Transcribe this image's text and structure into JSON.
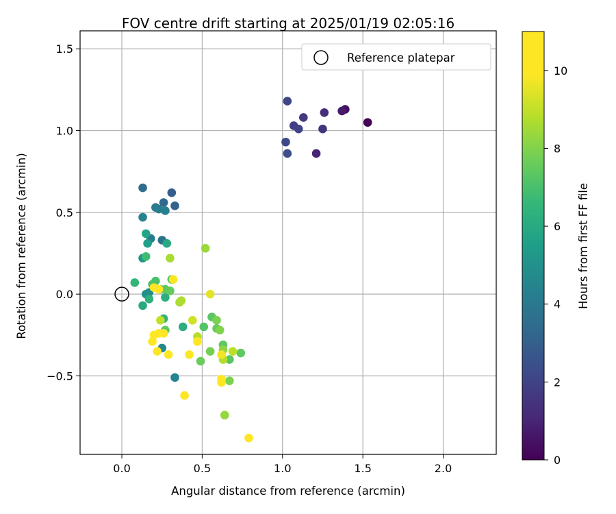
{
  "chart_data": {
    "type": "scatter",
    "title": "FOV centre drift starting at 2025/01/19 02:05:16",
    "xlabel": "Angular distance from reference (arcmin)",
    "ylabel": "Rotation from reference (arcmin)",
    "xlim": [
      -0.26,
      2.33
    ],
    "ylim": [
      -0.98,
      1.61
    ],
    "xticks": [
      0.0,
      0.5,
      1.0,
      1.5,
      2.0
    ],
    "xtick_labels": [
      "0.0",
      "0.5",
      "1.0",
      "1.5",
      "2.0"
    ],
    "yticks": [
      -0.5,
      0.0,
      0.5,
      1.0,
      1.5
    ],
    "ytick_labels": [
      "−0.5",
      "0.0",
      "0.5",
      "1.0",
      "1.5"
    ],
    "grid": true,
    "legend": {
      "placement": "top-right",
      "entries": [
        "Reference platepar"
      ]
    },
    "reference_point": {
      "x": 0.0,
      "y": 0.0,
      "label": "Reference platepar"
    },
    "colorbar": {
      "label": "Hours from first FF file",
      "colormap": "viridis",
      "range": [
        0,
        11
      ],
      "ticks": [
        0,
        2,
        4,
        6,
        8,
        10
      ],
      "tick_labels": [
        "0",
        "2",
        "4",
        "6",
        "8",
        "10"
      ]
    },
    "series": [
      {
        "points": [
          {
            "x": 1.53,
            "y": 1.05,
            "c": 0.1
          },
          {
            "x": 1.39,
            "y": 1.13,
            "c": 0.4
          },
          {
            "x": 1.37,
            "y": 1.12,
            "c": 0.7
          },
          {
            "x": 1.21,
            "y": 0.86,
            "c": 1.0
          },
          {
            "x": 1.26,
            "y": 1.11,
            "c": 1.3
          },
          {
            "x": 1.25,
            "y": 1.01,
            "c": 1.5
          },
          {
            "x": 1.13,
            "y": 1.08,
            "c": 1.7
          },
          {
            "x": 1.07,
            "y": 1.03,
            "c": 1.8
          },
          {
            "x": 1.1,
            "y": 1.01,
            "c": 2.0
          },
          {
            "x": 1.03,
            "y": 1.18,
            "c": 2.1
          },
          {
            "x": 1.02,
            "y": 0.93,
            "c": 2.2
          },
          {
            "x": 1.03,
            "y": 0.86,
            "c": 2.4
          },
          {
            "x": 0.31,
            "y": 0.62,
            "c": 2.9
          },
          {
            "x": 0.33,
            "y": 0.54,
            "c": 3.1
          },
          {
            "x": 0.26,
            "y": 0.56,
            "c": 3.3
          },
          {
            "x": 0.13,
            "y": 0.65,
            "c": 3.5
          },
          {
            "x": 0.25,
            "y": 0.33,
            "c": 3.8
          },
          {
            "x": 0.21,
            "y": 0.53,
            "c": 4.1
          },
          {
            "x": 0.23,
            "y": 0.52,
            "c": 4.2
          },
          {
            "x": 0.27,
            "y": 0.51,
            "c": 4.3
          },
          {
            "x": 0.13,
            "y": 0.47,
            "c": 4.4
          },
          {
            "x": 0.18,
            "y": 0.34,
            "c": 4.1
          },
          {
            "x": 0.33,
            "y": -0.51,
            "c": 4.4
          },
          {
            "x": 0.25,
            "y": -0.33,
            "c": 4.6
          },
          {
            "x": 0.17,
            "y": 0.01,
            "c": 4.8
          },
          {
            "x": 0.15,
            "y": 0.0,
            "c": 5.0
          },
          {
            "x": 0.13,
            "y": 0.22,
            "c": 5.2
          },
          {
            "x": 0.16,
            "y": 0.31,
            "c": 5.6
          },
          {
            "x": 0.15,
            "y": 0.37,
            "c": 5.8
          },
          {
            "x": 0.28,
            "y": 0.31,
            "c": 6.0
          },
          {
            "x": 0.13,
            "y": -0.07,
            "c": 6.0
          },
          {
            "x": 0.27,
            "y": -0.02,
            "c": 6.2
          },
          {
            "x": 0.17,
            "y": -0.03,
            "c": 6.3
          },
          {
            "x": 0.26,
            "y": -0.15,
            "c": 6.4
          },
          {
            "x": 0.38,
            "y": -0.2,
            "c": 6.2
          },
          {
            "x": 0.08,
            "y": 0.07,
            "c": 6.5
          },
          {
            "x": 0.15,
            "y": 0.23,
            "c": 6.8
          },
          {
            "x": 0.21,
            "y": 0.08,
            "c": 7.0
          },
          {
            "x": 0.19,
            "y": 0.06,
            "c": 7.1
          },
          {
            "x": 0.24,
            "y": 0.03,
            "c": 7.2
          },
          {
            "x": 0.27,
            "y": 0.03,
            "c": 7.4
          },
          {
            "x": 0.3,
            "y": 0.02,
            "c": 7.5
          },
          {
            "x": 0.31,
            "y": 0.09,
            "c": 7.3
          },
          {
            "x": 0.27,
            "y": -0.22,
            "c": 7.4
          },
          {
            "x": 0.51,
            "y": -0.2,
            "c": 7.2
          },
          {
            "x": 0.56,
            "y": -0.14,
            "c": 7.3
          },
          {
            "x": 0.59,
            "y": -0.21,
            "c": 7.5
          },
          {
            "x": 0.63,
            "y": -0.31,
            "c": 7.4
          },
          {
            "x": 0.67,
            "y": -0.4,
            "c": 7.3
          },
          {
            "x": 0.74,
            "y": -0.36,
            "c": 7.4
          },
          {
            "x": 0.49,
            "y": -0.41,
            "c": 7.6
          },
          {
            "x": 0.55,
            "y": -0.35,
            "c": 7.8
          },
          {
            "x": 0.59,
            "y": -0.16,
            "c": 7.9
          },
          {
            "x": 0.61,
            "y": -0.22,
            "c": 8.0
          },
          {
            "x": 0.67,
            "y": -0.53,
            "c": 7.9
          },
          {
            "x": 0.63,
            "y": -0.34,
            "c": 8.2
          },
          {
            "x": 0.64,
            "y": -0.74,
            "c": 8.3
          },
          {
            "x": 0.52,
            "y": 0.28,
            "c": 8.4
          },
          {
            "x": 0.3,
            "y": 0.22,
            "c": 8.6
          },
          {
            "x": 0.36,
            "y": -0.05,
            "c": 8.6
          },
          {
            "x": 0.37,
            "y": -0.04,
            "c": 8.7
          },
          {
            "x": 0.47,
            "y": -0.26,
            "c": 8.8
          },
          {
            "x": 0.63,
            "y": -0.4,
            "c": 8.8
          },
          {
            "x": 0.69,
            "y": -0.35,
            "c": 8.9
          },
          {
            "x": 0.24,
            "y": -0.16,
            "c": 9.0
          },
          {
            "x": 0.44,
            "y": -0.16,
            "c": 9.2
          },
          {
            "x": 0.55,
            "y": 0.0,
            "c": 9.5
          },
          {
            "x": 0.62,
            "y": -0.37,
            "c": 9.7
          },
          {
            "x": 0.62,
            "y": -0.52,
            "c": 9.9
          },
          {
            "x": 0.79,
            "y": -0.88,
            "c": 10.0
          },
          {
            "x": 0.39,
            "y": -0.62,
            "c": 10.1
          },
          {
            "x": 0.42,
            "y": -0.37,
            "c": 10.2
          },
          {
            "x": 0.29,
            "y": -0.37,
            "c": 10.3
          },
          {
            "x": 0.22,
            "y": -0.35,
            "c": 10.4
          },
          {
            "x": 0.19,
            "y": -0.29,
            "c": 10.5
          },
          {
            "x": 0.2,
            "y": -0.25,
            "c": 10.6
          },
          {
            "x": 0.26,
            "y": -0.24,
            "c": 10.7
          },
          {
            "x": 0.23,
            "y": -0.24,
            "c": 10.8
          },
          {
            "x": 0.47,
            "y": -0.29,
            "c": 10.9
          },
          {
            "x": 0.62,
            "y": -0.54,
            "c": 10.2
          },
          {
            "x": 0.2,
            "y": 0.04,
            "c": 10.8
          },
          {
            "x": 0.23,
            "y": 0.03,
            "c": 10.7
          },
          {
            "x": 0.32,
            "y": 0.09,
            "c": 10.95
          }
        ]
      }
    ]
  }
}
